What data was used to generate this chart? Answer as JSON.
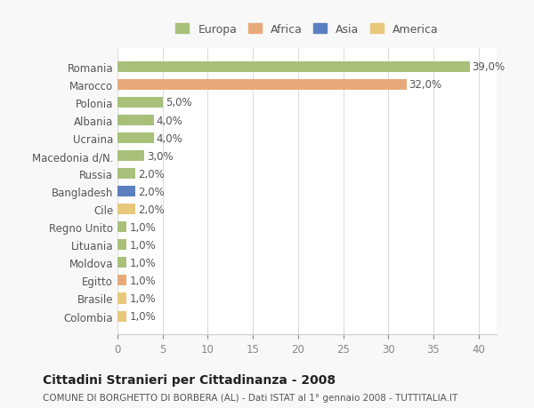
{
  "countries": [
    "Romania",
    "Marocco",
    "Polonia",
    "Albania",
    "Ucraina",
    "Macedonia d/N.",
    "Russia",
    "Bangladesh",
    "Cile",
    "Regno Unito",
    "Lituania",
    "Moldova",
    "Egitto",
    "Brasile",
    "Colombia"
  ],
  "values": [
    39.0,
    32.0,
    5.0,
    4.0,
    4.0,
    3.0,
    2.0,
    2.0,
    2.0,
    1.0,
    1.0,
    1.0,
    1.0,
    1.0,
    1.0
  ],
  "categories": [
    "Europa",
    "Africa",
    "Europa",
    "Europa",
    "Europa",
    "Europa",
    "Europa",
    "Asia",
    "America",
    "Europa",
    "Europa",
    "Europa",
    "Africa",
    "America",
    "America"
  ],
  "colors": {
    "Europa": "#a8c07a",
    "Africa": "#e8aa7a",
    "Asia": "#5b7fbf",
    "America": "#e8c87a"
  },
  "legend_colors": {
    "Europa": "#a8c07a",
    "Africa": "#e8aa7a",
    "Asia": "#5b7fbf",
    "America": "#e8c87a"
  },
  "xlim": [
    0,
    42
  ],
  "xticks": [
    0,
    5,
    10,
    15,
    20,
    25,
    30,
    35,
    40
  ],
  "title": "Cittadini Stranieri per Cittadinanza - 2008",
  "subtitle": "COMUNE DI BORGHETTO DI BORBERA (AL) - Dati ISTAT al 1° gennaio 2008 - TUTTITALIA.IT",
  "background_color": "#f8f8f8",
  "bar_bg_color": "#ffffff",
  "label_fontsize": 8.5,
  "value_fontsize": 8.5,
  "title_fontsize": 10,
  "subtitle_fontsize": 7.5
}
